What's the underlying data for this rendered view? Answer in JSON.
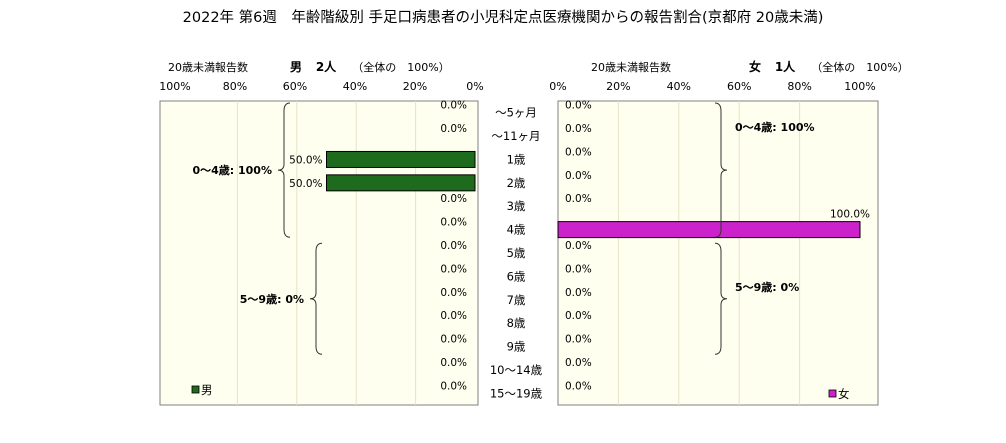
{
  "title": "2022年 第6週　年齢階級別 手足口病患者の小児科定点医療機関からの報告割合(京都府 20歳未満)",
  "colors": {
    "male": "#1e6b1e",
    "female": "#cc22cc",
    "plot_bg": "#fffff0",
    "grid": "#e4e4c8"
  },
  "chart_data": [
    {
      "type": "bar",
      "orientation": "horizontal",
      "direction": "right-to-left",
      "header_label": "20歳未満報告数",
      "header_sex": "男",
      "header_count": "2人",
      "header_note": "（全体の　100%）",
      "ticks": [
        "100%",
        "80%",
        "60%",
        "40%",
        "20%",
        "0%"
      ],
      "xlim": [
        0,
        100
      ],
      "categories": [
        "～5ヶ月",
        "～11ヶ月",
        "1歳",
        "2歳",
        "3歳",
        "4歳",
        "5歳",
        "6歳",
        "7歳",
        "8歳",
        "9歳",
        "10～14歳",
        "15～19歳"
      ],
      "series": [
        {
          "name": "男",
          "values": [
            0,
            0,
            50,
            50,
            0,
            0,
            0,
            0,
            0,
            0,
            0,
            0,
            0
          ]
        }
      ],
      "data_labels": [
        "0.0%",
        "0.0%",
        "50.0%",
        "50.0%",
        "0.0%",
        "0.0%",
        "0.0%",
        "0.0%",
        "0.0%",
        "0.0%",
        "0.0%",
        "0.0%",
        "0.0%"
      ],
      "annotations": [
        {
          "text": "0～4歳: 100%",
          "from": 0,
          "to": 5
        },
        {
          "text": "5～9歳: 0%",
          "from": 6,
          "to": 10
        }
      ],
      "legend": "男",
      "legend_position": "bottom-left"
    },
    {
      "type": "bar",
      "orientation": "horizontal",
      "direction": "left-to-right",
      "header_label": "20歳未満報告数",
      "header_sex": "女",
      "header_count": "1人",
      "header_note": "（全体の　100%）",
      "ticks": [
        "0%",
        "20%",
        "40%",
        "60%",
        "80%",
        "100%"
      ],
      "xlim": [
        0,
        100
      ],
      "categories": [
        "～5ヶ月",
        "～11ヶ月",
        "1歳",
        "2歳",
        "3歳",
        "4歳",
        "5歳",
        "6歳",
        "7歳",
        "8歳",
        "9歳",
        "10～14歳",
        "15～19歳"
      ],
      "series": [
        {
          "name": "女",
          "values": [
            0,
            0,
            0,
            0,
            0,
            100,
            0,
            0,
            0,
            0,
            0,
            0,
            0
          ]
        }
      ],
      "data_labels": [
        "0.0%",
        "0.0%",
        "0.0%",
        "0.0%",
        "0.0%",
        "100.0%",
        "0.0%",
        "0.0%",
        "0.0%",
        "0.0%",
        "0.0%",
        "0.0%",
        "0.0%"
      ],
      "annotations": [
        {
          "text": "0～4歳: 100%",
          "from": 0,
          "to": 5
        },
        {
          "text": "5～9歳: 0%",
          "from": 6,
          "to": 10
        }
      ],
      "legend": "女",
      "legend_position": "bottom-right"
    }
  ]
}
